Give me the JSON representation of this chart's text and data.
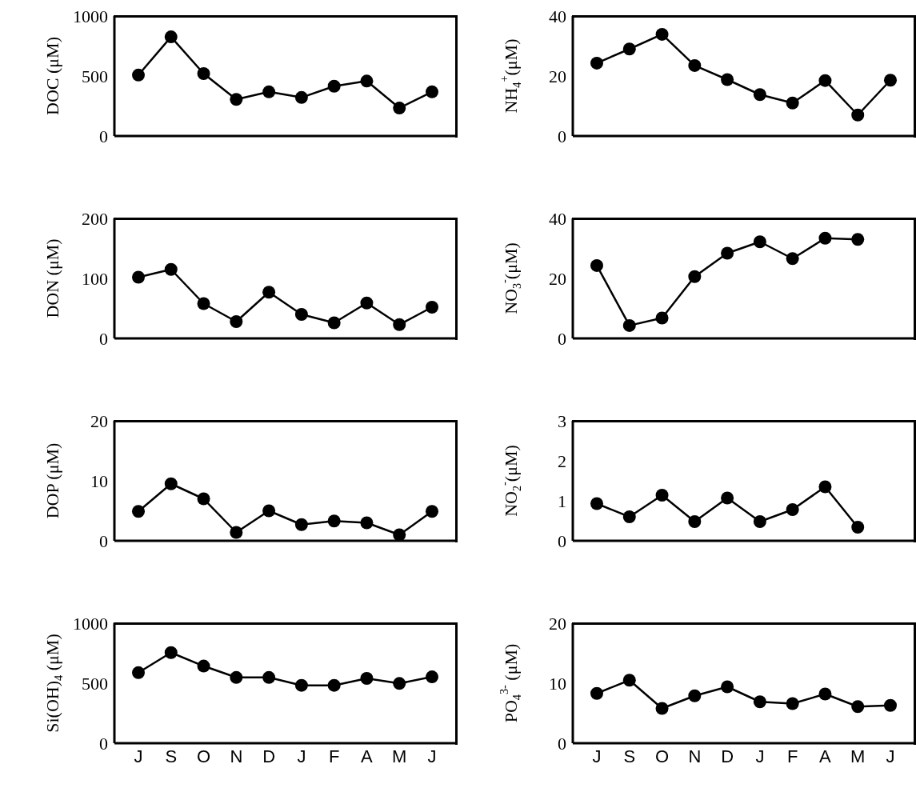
{
  "chart_data": [
    {
      "type": "line",
      "categories": [
        null,
        null,
        null,
        null,
        null,
        null,
        null,
        null,
        null,
        null
      ],
      "values": [
        508,
        826,
        520,
        305,
        368,
        321,
        415,
        458,
        233,
        368
      ],
      "color": "#000000",
      "marker": "circle",
      "ylabel": "DOC (μM)",
      "ylim": [
        0,
        1000
      ],
      "yticks": [
        0,
        500,
        1000
      ],
      "tick_labels": "y"
    },
    {
      "type": "line",
      "categories": [
        null,
        null,
        null,
        null,
        null,
        null,
        null,
        null,
        null,
        null
      ],
      "values": [
        24.3,
        29.0,
        33.9,
        23.5,
        18.8,
        13.8,
        11.0,
        18.5,
        7.0,
        18.6
      ],
      "color": "#000000",
      "marker": "circle",
      "ylabel": "NH$_{4}$$^{+}$(μM)",
      "ylim": [
        0,
        40
      ],
      "yticks": [
        0,
        20,
        40
      ],
      "tick_labels": "y"
    },
    {
      "type": "line",
      "categories": [
        null,
        null,
        null,
        null,
        null,
        null,
        null,
        null,
        null,
        null
      ],
      "values": [
        102,
        115,
        58,
        28,
        77,
        40,
        26,
        59,
        23,
        52
      ],
      "color": "#000000",
      "marker": "circle",
      "ylabel": "DON (μM)",
      "ylim": [
        0,
        200
      ],
      "yticks": [
        0,
        100,
        200
      ],
      "tick_labels": "y"
    },
    {
      "type": "line",
      "categories": [
        null,
        null,
        null,
        null,
        null,
        null,
        null,
        null,
        null,
        null
      ],
      "values": [
        24.3,
        4.3,
        6.8,
        20.6,
        28.4,
        32.2,
        26.6,
        33.4,
        33.0,
        null
      ],
      "color": "#000000",
      "marker": "circle",
      "ylabel": "NO$_{3}$$^{-}$(μM)",
      "ylim": [
        0,
        40
      ],
      "yticks": [
        0,
        20,
        40
      ],
      "tick_labels": "y"
    },
    {
      "type": "line",
      "categories": [
        null,
        null,
        null,
        null,
        null,
        null,
        null,
        null,
        null,
        null
      ],
      "values": [
        4.9,
        9.5,
        7.0,
        1.4,
        5.0,
        2.7,
        3.3,
        3.0,
        1.0,
        4.9
      ],
      "color": "#000000",
      "marker": "circle",
      "ylabel": "DOP (μM)",
      "ylim": [
        0,
        20
      ],
      "yticks": [
        0,
        10,
        20
      ],
      "tick_labels": "y"
    },
    {
      "type": "line",
      "categories": [
        null,
        null,
        null,
        null,
        null,
        null,
        null,
        null,
        null,
        null
      ],
      "values": [
        0.93,
        0.6,
        1.14,
        0.48,
        1.07,
        0.48,
        0.78,
        1.35,
        0.34,
        null
      ],
      "color": "#000000",
      "marker": "circle",
      "ylabel": "NO$_{2}$$^{-}$(μM)",
      "ylim": [
        0,
        3
      ],
      "yticks": [
        0,
        1,
        2,
        3
      ],
      "tick_labels": "y"
    },
    {
      "type": "line",
      "categories": [
        "J",
        "S",
        "O",
        "N",
        "D",
        "J",
        "F",
        "A",
        "M",
        "J"
      ],
      "values": [
        588,
        755,
        643,
        548,
        548,
        482,
        482,
        540,
        498,
        553
      ],
      "color": "#000000",
      "marker": "circle",
      "ylabel": "Si(OH)$_{4}$ (μM)",
      "ylim": [
        0,
        1000
      ],
      "yticks": [
        0,
        500,
        1000
      ]
    },
    {
      "type": "line",
      "categories": [
        "J",
        "S",
        "O",
        "N",
        "D",
        "J",
        "F",
        "A",
        "M",
        "J"
      ],
      "values": [
        8.3,
        10.5,
        5.8,
        7.9,
        9.4,
        6.9,
        6.6,
        8.2,
        6.1,
        6.3
      ],
      "color": "#000000",
      "marker": "circle",
      "ylabel": "PO$_{4}$$^{3-}$ (μM)",
      "ylim": [
        0,
        20
      ],
      "yticks": [
        0,
        10,
        20
      ]
    }
  ]
}
